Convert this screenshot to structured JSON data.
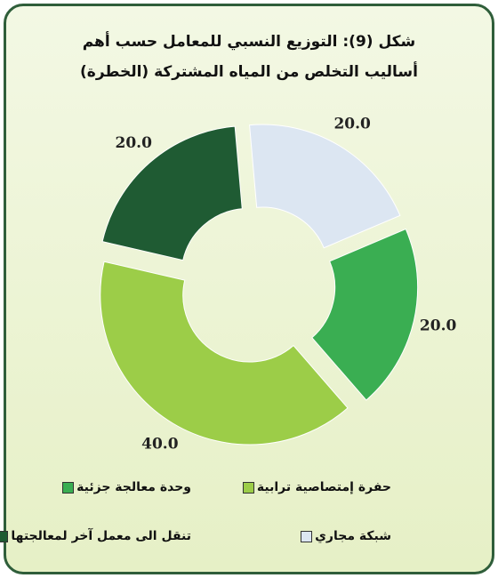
{
  "chart_data": {
    "type": "donut",
    "title": "شكل (9): التوزيع النسبي للمعامل حسب أهم أساليب التخلص من المياه المشتركة (الخطرة)",
    "categories": [
      "شبكة مجاري",
      "وحدة معالجة جزئية",
      "حفرة إمتصاصية ترابية",
      "تنقل الى معمل آخر لمعالجتها"
    ],
    "values": [
      20,
      20,
      40,
      20
    ],
    "value_labels": [
      "20.0",
      "20.0",
      "40.0",
      "20.0"
    ],
    "colors": [
      "#dce6f2",
      "#3aae52",
      "#9ccd48",
      "#1f5b33"
    ]
  }
}
